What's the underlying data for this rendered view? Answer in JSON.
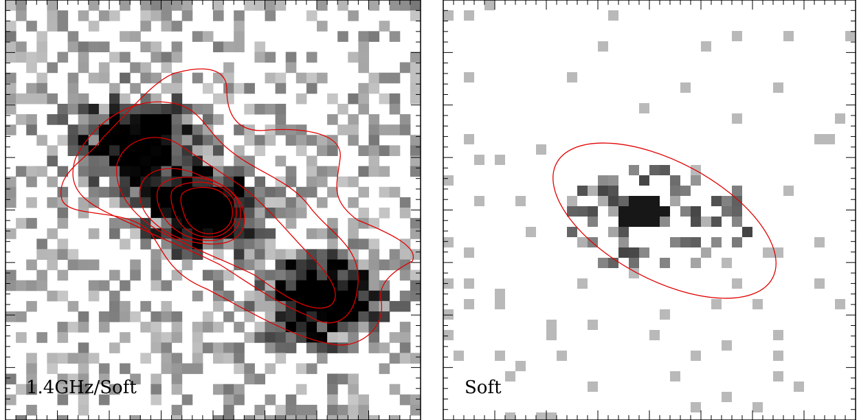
{
  "panels": [
    {
      "label": "1.4GHz/Soft"
    },
    {
      "label": "Soft"
    }
  ]
}
